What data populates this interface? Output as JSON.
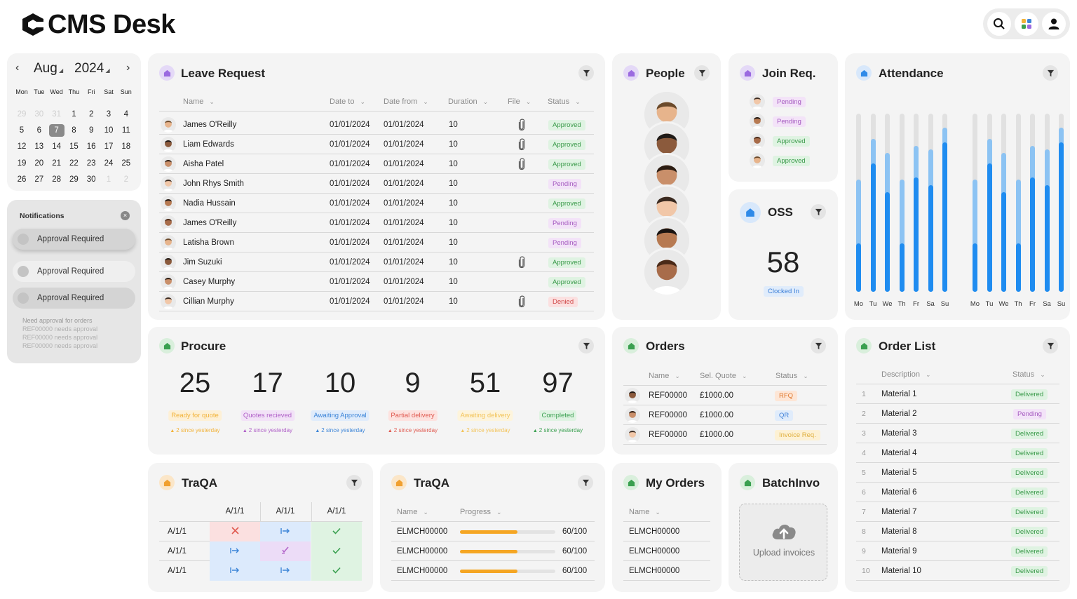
{
  "app": {
    "logo_text": "CMS Desk"
  },
  "topbar": {
    "search_icon": "search-icon",
    "apps_icon": "apps-grid-icon",
    "profile_icon": "user-icon"
  },
  "calendar": {
    "month": "Aug",
    "year": "2024",
    "weekdays": [
      "Mon",
      "Tue",
      "Wed",
      "Thu",
      "Fri",
      "Sat",
      "Sun"
    ],
    "weeks": [
      [
        "29",
        "30",
        "31",
        "1",
        "2",
        "3",
        "4"
      ],
      [
        "5",
        "6",
        "7",
        "8",
        "9",
        "10",
        "11"
      ],
      [
        "12",
        "13",
        "14",
        "15",
        "16",
        "17",
        "18"
      ],
      [
        "19",
        "20",
        "21",
        "22",
        "23",
        "24",
        "25"
      ],
      [
        "26",
        "27",
        "28",
        "29",
        "30",
        "1",
        "2"
      ]
    ],
    "selected": "7"
  },
  "notifications": {
    "title": "Notifications",
    "items": [
      "Approval Required",
      "Approval Required",
      "Approval Required"
    ],
    "detail": [
      "Need approval for orders",
      "REF00000 needs approval",
      "REF00000 needs approval",
      "REF00000 needs approval"
    ]
  },
  "leave": {
    "title": "Leave Request",
    "headers": {
      "name": "Name",
      "date_to": "Date to",
      "date_from": "Date from",
      "duration": "Duration",
      "file": "File",
      "status": "Status"
    },
    "rows": [
      {
        "name": "James O'Reilly",
        "to": "01/01/2024",
        "from": "01/01/2024",
        "dur": "10",
        "file": true,
        "status": "Approved"
      },
      {
        "name": "Liam Edwards",
        "to": "01/01/2024",
        "from": "01/01/2024",
        "dur": "10",
        "file": true,
        "status": "Approved"
      },
      {
        "name": "Aisha Patel",
        "to": "01/01/2024",
        "from": "01/01/2024",
        "dur": "10",
        "file": true,
        "status": "Approved"
      },
      {
        "name": "John Rhys Smith",
        "to": "01/01/2024",
        "from": "01/01/2024",
        "dur": "10",
        "file": false,
        "status": "Pending"
      },
      {
        "name": "Nadia Hussain",
        "to": "01/01/2024",
        "from": "01/01/2024",
        "dur": "10",
        "file": false,
        "status": "Approved"
      },
      {
        "name": "James O'Reilly",
        "to": "01/01/2024",
        "from": "01/01/2024",
        "dur": "10",
        "file": false,
        "status": "Pending"
      },
      {
        "name": "Latisha Brown",
        "to": "01/01/2024",
        "from": "01/01/2024",
        "dur": "10",
        "file": false,
        "status": "Pending"
      },
      {
        "name": "Jim Suzuki",
        "to": "01/01/2024",
        "from": "01/01/2024",
        "dur": "10",
        "file": true,
        "status": "Approved"
      },
      {
        "name": "Casey Murphy",
        "to": "01/01/2024",
        "from": "01/01/2024",
        "dur": "10",
        "file": false,
        "status": "Approved"
      },
      {
        "name": "Cillian Murphy",
        "to": "01/01/2024",
        "from": "01/01/2024",
        "dur": "10",
        "file": true,
        "status": "Denied"
      }
    ]
  },
  "people": {
    "title": "People",
    "count": 6
  },
  "join": {
    "title": "Join Req.",
    "statuses": [
      "Pending",
      "Pending",
      "Approved",
      "Approved"
    ]
  },
  "oss": {
    "title": "OSS",
    "value": "58",
    "label": "Clocked In"
  },
  "attendance": {
    "title": "Attendance",
    "days": [
      "Mo",
      "Tu",
      "We",
      "Th",
      "Fr",
      "Sa",
      "Su"
    ],
    "series_dark": [
      0.27,
      0.72,
      0.56,
      0.27,
      0.64,
      0.6,
      0.84
    ],
    "series_light": [
      0.63,
      0.86,
      0.78,
      0.63,
      0.82,
      0.8,
      0.92
    ],
    "colors": {
      "dark": "#1f8cf0",
      "light": "#8cc3f3",
      "track": "#e1e1e1"
    }
  },
  "procure": {
    "title": "Procure",
    "stats": [
      {
        "value": "25",
        "label": "Ready for quote",
        "sub": "2 since yesterday",
        "color": "#f2b33a",
        "bg": "#fdf0d6"
      },
      {
        "value": "17",
        "label": "Quotes recieved",
        "sub": "2 since yesterday",
        "color": "#b060c8",
        "bg": "#f2e2f7"
      },
      {
        "value": "10",
        "label": "Awaiting Approval",
        "sub": "2 since yesterday",
        "color": "#3c85d8",
        "bg": "#e0ecfb"
      },
      {
        "value": "9",
        "label": "Partial delivery",
        "sub": "2 since yesterday",
        "color": "#e05a50",
        "bg": "#fde2df"
      },
      {
        "value": "51",
        "label": "Awaiting delivery",
        "sub": "2 since yesterday",
        "color": "#f3c45a",
        "bg": "#fdf4dc"
      },
      {
        "value": "97",
        "label": "Completed",
        "sub": "2 since yesterday",
        "color": "#3aa050",
        "bg": "#dff3e2"
      }
    ]
  },
  "orders": {
    "title": "Orders",
    "headers": {
      "name": "Name",
      "quote": "Sel. Quote",
      "status": "Status"
    },
    "rows": [
      {
        "name": "REF00000",
        "quote": "£1000.00",
        "status": "RFQ"
      },
      {
        "name": "REF00000",
        "quote": "£1000.00",
        "status": "QR"
      },
      {
        "name": "REF00000",
        "quote": "£1000.00",
        "status": "Invoice Req."
      }
    ]
  },
  "orderlist": {
    "title": "Order List",
    "headers": {
      "desc": "Description",
      "status": "Status"
    },
    "rows": [
      {
        "n": "1",
        "desc": "Material 1",
        "status": "Delivered"
      },
      {
        "n": "2",
        "desc": "Material 2",
        "status": "Pending"
      },
      {
        "n": "3",
        "desc": "Material 3",
        "status": "Delivered"
      },
      {
        "n": "4",
        "desc": "Material 4",
        "status": "Delivered"
      },
      {
        "n": "5",
        "desc": "Material 5",
        "status": "Delivered"
      },
      {
        "n": "6",
        "desc": "Material 6",
        "status": "Delivered"
      },
      {
        "n": "7",
        "desc": "Material 7",
        "status": "Delivered"
      },
      {
        "n": "8",
        "desc": "Material 8",
        "status": "Delivered"
      },
      {
        "n": "9",
        "desc": "Material 9",
        "status": "Delivered"
      },
      {
        "n": "10",
        "desc": "Material 10",
        "status": "Delivered"
      }
    ]
  },
  "traqa1": {
    "title": "TraQA",
    "cols": [
      "A/1/1",
      "A/1/1",
      "A/1/1"
    ],
    "rows": [
      "A/1/1",
      "A/1/1",
      "A/1/1"
    ]
  },
  "traqa2": {
    "title": "TraQA",
    "headers": {
      "name": "Name",
      "progress": "Progress"
    },
    "rows": [
      {
        "name": "ELMCH00000",
        "progress": 0.6,
        "label": "60/100"
      },
      {
        "name": "ELMCH00000",
        "progress": 0.6,
        "label": "60/100"
      },
      {
        "name": "ELMCH00000",
        "progress": 0.6,
        "label": "60/100"
      }
    ]
  },
  "myorders": {
    "title": "My Orders",
    "header": "Name",
    "rows": [
      "ELMCH00000",
      "ELMCH00000",
      "ELMCH00000"
    ]
  },
  "batch": {
    "title": "BatchInvo",
    "upload_label": "Upload invoices"
  },
  "colors": {
    "purple": "#9b6ae0",
    "blue": "#2f8ae8",
    "green": "#3aa050",
    "orange": "#f0a030"
  }
}
